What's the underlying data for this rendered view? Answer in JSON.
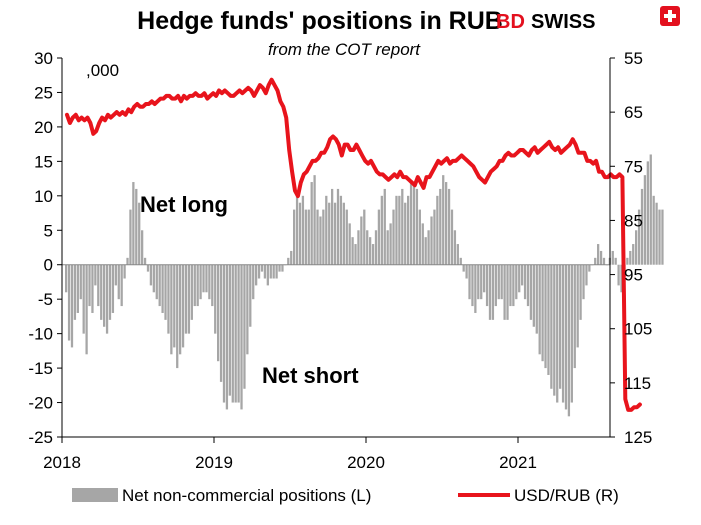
{
  "chart_data": {
    "type": "bar",
    "title": "Hedge funds' positions in RUB",
    "subtitle": "from the COT report",
    "unit_label": ",000",
    "annotations": {
      "long": "Net long",
      "short": "Net short"
    },
    "x_ticks": [
      "2018",
      "2019",
      "2020",
      "2021"
    ],
    "y_left": {
      "min": -25,
      "max": 30,
      "ticks": [
        30,
        25,
        20,
        15,
        10,
        5,
        0,
        -5,
        -10,
        -15,
        -20,
        -25
      ]
    },
    "y_right": {
      "min": 55,
      "max": 125,
      "inverted": true,
      "ticks": [
        55,
        65,
        75,
        85,
        95,
        105,
        115,
        125
      ]
    },
    "colors": {
      "bars": "#a6a6a6",
      "line": "#e8141c",
      "logo_red": "#e3101e"
    },
    "legend": [
      {
        "label": "Net non-commercial positions (L)",
        "kind": "bar"
      },
      {
        "label": "USD/RUB (R)",
        "kind": "line"
      }
    ],
    "logo": {
      "part1": "BD",
      "part2": "SWISS"
    },
    "series": [
      {
        "name": "Net non-commercial positions (L)",
        "axis": "left",
        "start_year": 2018,
        "frequency": "weekly",
        "values": [
          -4,
          -11,
          -12,
          -8,
          -7,
          -5,
          -10,
          -13,
          -6,
          -7,
          -3,
          -6,
          -8,
          -9,
          -10,
          -8,
          -7,
          -3,
          -5,
          -6,
          -2,
          1,
          8,
          12,
          11,
          9,
          5,
          1,
          -1,
          -3,
          -4,
          -5,
          -6,
          -7,
          -8,
          -10,
          -13,
          -12,
          -15,
          -13,
          -12,
          -10,
          -10,
          -8,
          -6,
          -6,
          -5,
          -4,
          -4,
          -5,
          -6,
          -10,
          -14,
          -17,
          -20,
          -21,
          -19,
          -20,
          -20,
          -20,
          -21,
          -18,
          -13,
          -9,
          -5,
          -3,
          -2,
          -1,
          -2,
          -3,
          -2,
          -2,
          -2,
          -1,
          -1,
          0,
          1,
          2,
          8,
          10,
          9,
          10,
          8,
          8,
          12,
          13,
          8,
          7,
          8,
          10,
          9,
          11,
          9,
          11,
          10,
          9,
          8,
          6,
          4,
          3,
          5,
          7,
          8,
          5,
          4,
          3,
          5,
          8,
          10,
          11,
          5,
          6,
          8,
          10,
          10,
          11,
          9,
          10,
          12,
          12,
          11,
          8,
          6,
          4,
          5,
          7,
          8,
          10,
          11,
          13,
          12,
          11,
          8,
          5,
          3,
          1,
          -1,
          -2,
          -5,
          -6,
          -7,
          -5,
          -5,
          -4,
          -6,
          -8,
          -8,
          -6,
          -5,
          -5,
          -8,
          -8,
          -6,
          -6,
          -5,
          -4,
          -3,
          -5,
          -6,
          -8,
          -9,
          -10,
          -13,
          -14,
          -15,
          -16,
          -18,
          -19,
          -20,
          -18,
          -20,
          -21,
          -22,
          -20,
          -15,
          -12,
          -8,
          -5,
          -3,
          -1,
          0,
          1,
          3,
          2,
          1,
          0,
          1,
          2,
          1,
          -3,
          -4,
          -2,
          1,
          2,
          3,
          5,
          8,
          11,
          13,
          15,
          16,
          10,
          9,
          8,
          8
        ]
      },
      {
        "name": "USD/RUB (R)",
        "axis": "right",
        "start_year": 2018,
        "frequency": "weekly",
        "values": [
          65.5,
          67,
          66,
          65.5,
          66.5,
          66,
          66.5,
          66,
          67,
          69,
          68.5,
          67,
          66,
          66.5,
          65.5,
          66,
          65.5,
          65,
          65.5,
          65,
          65.5,
          64.5,
          65,
          64,
          63.5,
          64,
          64,
          63.5,
          63.5,
          63,
          63.5,
          63,
          62.5,
          62.5,
          62,
          62,
          62.5,
          62.5,
          62,
          63,
          62,
          62.5,
          62,
          62,
          61.5,
          62,
          62,
          61.5,
          62.5,
          62,
          61.5,
          62,
          61,
          61.5,
          61,
          61.5,
          62,
          62,
          61.5,
          61,
          61.5,
          61,
          60.5,
          61,
          62,
          61,
          60,
          60.5,
          61.5,
          60,
          59,
          60,
          61,
          63,
          64,
          66,
          72,
          76,
          79.5,
          80.5,
          78,
          76.5,
          76,
          75,
          74,
          74,
          73.5,
          72.5,
          72.5,
          71.5,
          70,
          69.5,
          70,
          71,
          73,
          71,
          71,
          72,
          72,
          71,
          72,
          73,
          74,
          74.5,
          74,
          75,
          76,
          76.5,
          76.5,
          77,
          77.5,
          77,
          76.5,
          77,
          76,
          77,
          77,
          77.5,
          78,
          78.5,
          77,
          78,
          79,
          77,
          77,
          76,
          75,
          74,
          74.5,
          74,
          73.5,
          74.5,
          74,
          74,
          73.5,
          73,
          73.5,
          74,
          74.5,
          75,
          76,
          77,
          77.5,
          78,
          77,
          76,
          75.5,
          75,
          74,
          74,
          73,
          72.5,
          73,
          73,
          72.5,
          72,
          72,
          72.5,
          73,
          72,
          71.5,
          72.5,
          72,
          71.5,
          71,
          70.5,
          71.5,
          72,
          71.5,
          72.5,
          72,
          71.5,
          71,
          70,
          71,
          72.5,
          72.5,
          72.5,
          74,
          74,
          74.5,
          74,
          76,
          76,
          77,
          77,
          76.5,
          77,
          77,
          76.5,
          77,
          118,
          120,
          120,
          119.5,
          119.5,
          119
        ]
      }
    ]
  }
}
